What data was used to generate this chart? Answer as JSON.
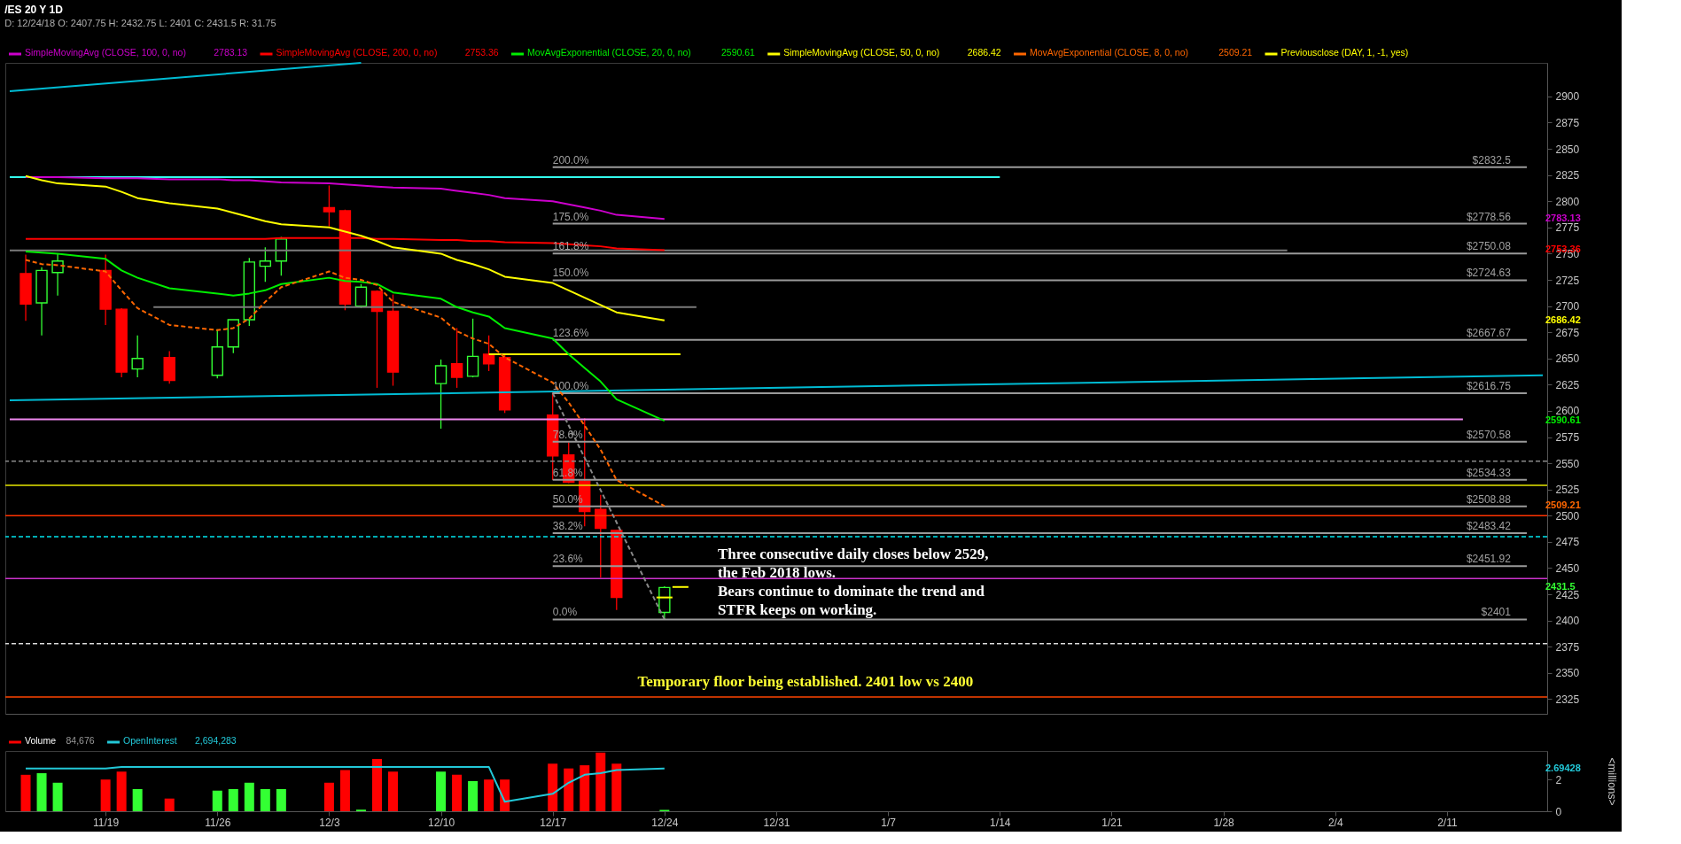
{
  "chart_data": [
    {
      "type": "candlestick",
      "title": "/ES 20 Y 1D",
      "subtitle": "D: 12/24/18   O: 2407.75   H: 2432.75   L: 2401   C: 2431.5   R: 31.75",
      "x": [
        "2018-11-14",
        "2018-11-15",
        "2018-11-16",
        "2018-11-19",
        "2018-11-20",
        "2018-11-21",
        "2018-11-23",
        "2018-11-26",
        "2018-11-27",
        "2018-11-28",
        "2018-11-29",
        "2018-11-30",
        "2018-12-03",
        "2018-12-04",
        "2018-12-05",
        "2018-12-06",
        "2018-12-07",
        "2018-12-10",
        "2018-12-11",
        "2018-12-12",
        "2018-12-13",
        "2018-12-14",
        "2018-12-17",
        "2018-12-18",
        "2018-12-19",
        "2018-12-20",
        "2018-12-21",
        "2018-12-24"
      ],
      "ohlc": [
        [
          2731,
          2749,
          2686,
          2702
        ],
        [
          2703,
          2737,
          2672,
          2734
        ],
        [
          2732,
          2750,
          2710,
          2743
        ],
        [
          2734,
          2749,
          2682,
          2697
        ],
        [
          2697,
          2698,
          2632,
          2637
        ],
        [
          2640,
          2672,
          2632,
          2650
        ],
        [
          2651,
          2657,
          2626,
          2629
        ],
        [
          2634,
          2678,
          2631,
          2661
        ],
        [
          2661,
          2687,
          2655,
          2687
        ],
        [
          2687,
          2746,
          2681,
          2742
        ],
        [
          2738,
          2756,
          2723,
          2743
        ],
        [
          2743,
          2766,
          2729,
          2764
        ],
        [
          2794,
          2815,
          2776,
          2790
        ],
        [
          2791,
          2792,
          2696,
          2702
        ],
        [
          2700,
          2721,
          2698,
          2718
        ],
        [
          2714,
          2715,
          2622,
          2695
        ],
        [
          2695,
          2711,
          2624,
          2637
        ],
        [
          2626,
          2649,
          2583,
          2643
        ],
        [
          2645,
          2679,
          2622,
          2632
        ],
        [
          2633,
          2688,
          2632,
          2652
        ],
        [
          2654,
          2672,
          2638,
          2645
        ],
        [
          2651,
          2654,
          2598,
          2601
        ],
        [
          2596,
          2618,
          2534,
          2557
        ],
        [
          2558,
          2570,
          2531,
          2532
        ],
        [
          2533,
          2593,
          2490,
          2504
        ],
        [
          2506,
          2520,
          2441,
          2488
        ],
        [
          2486,
          2486,
          2410,
          2422
        ],
        [
          2407.75,
          2432.75,
          2401,
          2431.5
        ]
      ],
      "colors": [
        "#ff0000",
        "#33ff33",
        "#33ff33",
        "#ff0000",
        "#ff0000",
        "#33ff33",
        "#ff0000",
        "#33ff33",
        "#33ff33",
        "#33ff33",
        "#33ff33",
        "#33ff33",
        "#ff0000",
        "#ff0000",
        "#33ff33",
        "#ff0000",
        "#ff0000",
        "#33ff33",
        "#ff0000",
        "#33ff33",
        "#ff0000",
        "#ff0000",
        "#ff0000",
        "#ff0000",
        "#ff0000",
        "#ff0000",
        "#ff0000",
        "#33ff33"
      ],
      "series": [
        {
          "name": "SimpleMovingAvg (CLOSE, 100, 0, no)",
          "type": "line",
          "color": "#cc00cc",
          "values": [
            2823,
            2823,
            2823,
            2822,
            2822,
            2822,
            2821,
            2821,
            2820,
            2820,
            2819,
            2818,
            2817,
            2816,
            2815,
            2814,
            2813,
            2812,
            2810,
            2808,
            2806,
            2803,
            2800,
            2797,
            2794,
            2791,
            2787,
            2783.13
          ]
        },
        {
          "name": "SimpleMovingAvg (CLOSE, 200, 0, no)",
          "type": "line",
          "color": "#ff0000",
          "values": [
            2764,
            2764,
            2764,
            2764,
            2764,
            2764,
            2764,
            2764,
            2764,
            2764,
            2764,
            2765,
            2765,
            2765,
            2765,
            2764,
            2764,
            2763,
            2763,
            2762,
            2762,
            2761,
            2760,
            2759,
            2758,
            2757,
            2755,
            2753.36
          ]
        },
        {
          "name": "MovAvgExponential (CLOSE, 20, 0, no)",
          "type": "line",
          "color": "#00ee00",
          "values": [
            2752,
            2751,
            2750,
            2745,
            2734,
            2727,
            2717,
            2712,
            2710,
            2712,
            2715,
            2721,
            2727,
            2724,
            2723,
            2721,
            2713,
            2707,
            2699,
            2694,
            2690,
            2679,
            2669,
            2654,
            2641,
            2628,
            2611,
            2590.61
          ]
        },
        {
          "name": "SimpleMovingAvg (CLOSE, 50, 0, no)",
          "type": "line",
          "color": "#ffff00",
          "values": [
            2824,
            2820,
            2817,
            2814,
            2809,
            2803,
            2798,
            2793,
            2789,
            2785,
            2781,
            2778,
            2775,
            2771,
            2767,
            2762,
            2756,
            2750,
            2744,
            2740,
            2735,
            2728,
            2722,
            2715,
            2708,
            2701,
            2694,
            2686.42
          ]
        },
        {
          "name": "MovAvgExponential (CLOSE, 8, 0, no)",
          "type": "line",
          "color": "#ff6600",
          "line_style": "dashed",
          "values": [
            2744,
            2740,
            2739,
            2733,
            2715,
            2698,
            2682,
            2677,
            2679,
            2688,
            2704,
            2718,
            2733,
            2727,
            2725,
            2720,
            2704,
            2689,
            2676,
            2669,
            2664,
            2651,
            2627,
            2608,
            2586,
            2563,
            2534,
            2509.21
          ]
        },
        {
          "name": "Previousclose (DAY, 1, -1, yes)",
          "type": "line",
          "color": "#ffff00",
          "x": [
            "2018-12-23T12:00",
            "2018-12-24T12:00"
          ],
          "values": [
            2422,
            2422
          ]
        },
        {
          "type": "line",
          "color": "#ffff00",
          "x": [
            "2018-12-24T12:00",
            "2018-12-25T12:00"
          ],
          "values": [
            2432,
            2432
          ]
        },
        {
          "type": "line",
          "color": "#33ffee",
          "x": [
            "2018-11-13",
            "2019-01-14"
          ],
          "values": [
            2823,
            2823
          ]
        },
        {
          "type": "line",
          "color": "#7a7a7a",
          "x": [
            "2018-11-13",
            "2019-02-01"
          ],
          "values": [
            2753,
            2753
          ]
        },
        {
          "type": "line",
          "color": "#7a7a7a",
          "x": [
            "2018-11-22",
            "2018-12-26"
          ],
          "values": [
            2699,
            2699
          ]
        },
        {
          "type": "line",
          "color": "#ffff00",
          "x": [
            "2018-12-13",
            "2018-12-25"
          ],
          "values": [
            2654,
            2654
          ]
        },
        {
          "type": "line",
          "color": "#ee88ee",
          "x": [
            "2018-11-13",
            "2019-02-12"
          ],
          "values": [
            2592,
            2592
          ]
        },
        {
          "type": "line",
          "color": "#00bcd4",
          "x": [
            "2018-11-13",
            "2019-02-17"
          ],
          "values": [
            2610,
            2634
          ]
        },
        {
          "type": "line",
          "color": "#00bcd4",
          "x": [
            "2018-11-13",
            "2018-12-05"
          ],
          "values": [
            2905,
            2932
          ]
        },
        {
          "type": "line",
          "color": "#888888",
          "line_style": "dashed",
          "x": [
            "2018-12-17",
            "2018-12-24"
          ],
          "values": [
            2617,
            2401
          ]
        },
        {
          "type": "line",
          "color": "#9a9a9a",
          "x": [
            "2018-12-17",
            "2019-02-16"
          ],
          "values": [
            2832.5,
            2832.5
          ]
        },
        {
          "type": "line",
          "color": "#9a9a9a",
          "x": [
            "2018-12-17",
            "2019-02-16"
          ],
          "values": [
            2778.56,
            2778.56
          ]
        },
        {
          "type": "line",
          "color": "#9a9a9a",
          "x": [
            "2018-12-17",
            "2019-02-16"
          ],
          "values": [
            2750.08,
            2750.08
          ]
        },
        {
          "type": "line",
          "color": "#9a9a9a",
          "x": [
            "2018-12-17",
            "2019-02-16"
          ],
          "values": [
            2724.63,
            2724.63
          ]
        },
        {
          "type": "line",
          "color": "#9a9a9a",
          "x": [
            "2018-12-17",
            "2019-02-16"
          ],
          "values": [
            2667.67,
            2667.67
          ]
        },
        {
          "type": "line",
          "color": "#9a9a9a",
          "x": [
            "2018-12-17",
            "2019-02-16"
          ],
          "values": [
            2616.75,
            2616.75
          ]
        },
        {
          "type": "line",
          "color": "#9a9a9a",
          "x": [
            "2018-12-17",
            "2019-02-16"
          ],
          "values": [
            2570.58,
            2570.58
          ]
        },
        {
          "type": "line",
          "color": "#9a9a9a",
          "x": [
            "2018-12-17",
            "2019-02-16"
          ],
          "values": [
            2534.33,
            2534.33
          ]
        },
        {
          "type": "line",
          "color": "#9a9a9a",
          "x": [
            "2018-12-17",
            "2019-02-16"
          ],
          "values": [
            2508.88,
            2508.88
          ]
        },
        {
          "type": "line",
          "color": "#9a9a9a",
          "x": [
            "2018-12-17",
            "2019-02-16"
          ],
          "values": [
            2483.42,
            2483.42
          ]
        },
        {
          "type": "line",
          "color": "#9a9a9a",
          "x": [
            "2018-12-17",
            "2019-02-16"
          ],
          "values": [
            2451.92,
            2451.92
          ]
        },
        {
          "type": "line",
          "color": "#9a9a9a",
          "x": [
            "2018-12-17",
            "2019-02-16"
          ],
          "values": [
            2401,
            2401
          ]
        }
      ],
      "ref_lines": [
        {
          "axis": "y",
          "value": 2552,
          "color": "#8a8a8a",
          "line_style": "dashed"
        },
        {
          "axis": "y",
          "value": 2529,
          "color": "#e6e600"
        },
        {
          "axis": "y",
          "value": 2500,
          "color": "#ff3300"
        },
        {
          "axis": "y",
          "value": 2480,
          "color": "#00e5ee",
          "line_style": "dashed"
        },
        {
          "axis": "y",
          "value": 2440,
          "color": "#cc33cc"
        },
        {
          "axis": "y",
          "value": 2378,
          "color": "#dddddd",
          "line_style": "dashed"
        },
        {
          "axis": "y",
          "value": 2327,
          "color": "#ff4400"
        }
      ],
      "annotations": [
        "Three consecutive daily closes below 2529,\nthe Feb 2018 lows.\nBears continue to dominate the trend and\nSTFR keeps on working.",
        "Temporary floor being established. 2401 low vs 2400",
        "2431.5",
        "2783.13",
        "2753.36",
        "2590.61",
        "2686.42",
        "2509.21",
        {
          "text": "200.0%",
          "x": "2018-12-17",
          "y": 2832.5
        },
        {
          "text": "175.0%",
          "x": "2018-12-17",
          "y": 2778.56
        },
        {
          "text": "161.8%",
          "x": "2018-12-17",
          "y": 2750.08
        },
        {
          "text": "150.0%",
          "x": "2018-12-17",
          "y": 2724.63
        },
        {
          "text": "123.6%",
          "x": "2018-12-17",
          "y": 2667.67
        },
        {
          "text": "100.0%",
          "x": "2018-12-17",
          "y": 2616.75
        },
        {
          "text": "78.6%",
          "x": "2018-12-17",
          "y": 2570.58
        },
        {
          "text": "61.8%",
          "x": "2018-12-17",
          "y": 2534.33
        },
        {
          "text": "50.0%",
          "x": "2018-12-17",
          "y": 2508.88
        },
        {
          "text": "38.2%",
          "x": "2018-12-17",
          "y": 2483.42
        },
        {
          "text": "23.6%",
          "x": "2018-12-17",
          "y": 2451.92
        },
        {
          "text": "0.0%",
          "x": "2018-12-17",
          "y": 2401
        },
        {
          "text": "$2832.5",
          "x": "2019-02-15",
          "y": 2832.5
        },
        {
          "text": "$2778.56",
          "x": "2019-02-15",
          "y": 2778.56
        },
        {
          "text": "$2750.08",
          "x": "2019-02-15",
          "y": 2750.08
        },
        {
          "text": "$2724.63",
          "x": "2019-02-15",
          "y": 2724.63
        },
        {
          "text": "$2667.67",
          "x": "2019-02-15",
          "y": 2667.67
        },
        {
          "text": "$2616.75",
          "x": "2019-02-15",
          "y": 2616.75
        },
        {
          "text": "$2570.58",
          "x": "2019-02-15",
          "y": 2570.58
        },
        {
          "text": "$2534.33",
          "x": "2019-02-15",
          "y": 2534.33
        },
        {
          "text": "$2508.88",
          "x": "2019-02-15",
          "y": 2508.88
        },
        {
          "text": "$2483.42",
          "x": "2019-02-15",
          "y": 2483.42
        },
        {
          "text": "$2451.92",
          "x": "2019-02-15",
          "y": 2451.92
        },
        {
          "text": "$2401",
          "x": "2019-02-15",
          "y": 2401
        }
      ],
      "xlim": [
        "2018-11-13",
        "2019-02-17"
      ],
      "ylim": [
        2311,
        2932
      ],
      "yticks": [
        2325,
        2350,
        2375,
        2400,
        2425,
        2450,
        2475,
        2500,
        2525,
        2550,
        2575,
        2600,
        2625,
        2650,
        2675,
        2700,
        2725,
        2750,
        2775,
        2800,
        2825,
        2850,
        2875,
        2900
      ],
      "tick_labels": "y",
      "legend": "top"
    },
    {
      "type": "bar",
      "ylabel": "<millions>",
      "x": [
        "2018-11-14",
        "2018-11-15",
        "2018-11-16",
        "2018-11-19",
        "2018-11-20",
        "2018-11-21",
        "2018-11-23",
        "2018-11-26",
        "2018-11-27",
        "2018-11-28",
        "2018-11-29",
        "2018-11-30",
        "2018-12-03",
        "2018-12-04",
        "2018-12-05",
        "2018-12-06",
        "2018-12-07",
        "2018-12-10",
        "2018-12-11",
        "2018-12-12",
        "2018-12-13",
        "2018-12-14",
        "2018-12-17",
        "2018-12-18",
        "2018-12-19",
        "2018-12-20",
        "2018-12-21",
        "2018-12-24"
      ],
      "series": [
        {
          "name": "Volume",
          "type": "bar",
          "colors": [
            "#ff0000",
            "#33ff33",
            "#33ff33",
            "#ff0000",
            "#ff0000",
            "#33ff33",
            "#ff0000",
            "#33ff33",
            "#33ff33",
            "#33ff33",
            "#33ff33",
            "#33ff33",
            "#ff0000",
            "#ff0000",
            "#33ff33",
            "#ff0000",
            "#ff0000",
            "#33ff33",
            "#ff0000",
            "#33ff33",
            "#ff0000",
            "#ff0000",
            "#ff0000",
            "#ff0000",
            "#ff0000",
            "#ff0000",
            "#ff0000",
            "#33ff33"
          ],
          "values": [
            2.3,
            2.4,
            1.8,
            2.0,
            2.5,
            1.4,
            0.8,
            1.3,
            1.4,
            1.8,
            1.4,
            1.4,
            1.8,
            2.6,
            0.1,
            3.3,
            2.5,
            2.5,
            2.3,
            1.9,
            2.0,
            2.0,
            3.0,
            2.7,
            2.9,
            3.7,
            3.0,
            0.085
          ]
        },
        {
          "name": "OpenInterest",
          "type": "line",
          "color": "#22c8d8",
          "values": [
            2.7,
            2.7,
            2.7,
            2.7,
            2.8,
            2.8,
            2.8,
            2.8,
            2.8,
            2.8,
            2.8,
            2.8,
            2.8,
            2.8,
            2.8,
            2.8,
            2.8,
            2.8,
            2.8,
            2.8,
            2.8,
            0.6,
            1.1,
            1.8,
            2.3,
            2.4,
            2.6,
            2.69428
          ]
        }
      ],
      "annotations": [
        "84,676",
        "2,694,283",
        "2.69428"
      ],
      "xlim": [
        "2018-11-13",
        "2019-02-17"
      ],
      "ylim": [
        0,
        3.8
      ],
      "yticks": [
        0,
        2
      ],
      "xticks": [
        {
          "value": "2018-11-19",
          "label": "11/19"
        },
        {
          "value": "2018-11-26",
          "label": "11/26"
        },
        {
          "value": "2018-12-03",
          "label": "12/3"
        },
        {
          "value": "2018-12-10",
          "label": "12/10"
        },
        {
          "value": "2018-12-17",
          "label": "12/17"
        },
        {
          "value": "2018-12-24",
          "label": "12/24"
        },
        {
          "value": "2018-12-31",
          "label": "12/31"
        },
        {
          "value": "2019-01-07",
          "label": "1/7"
        },
        {
          "value": "2019-01-14",
          "label": "1/14"
        },
        {
          "value": "2019-01-21",
          "label": "1/21"
        },
        {
          "value": "2019-01-28",
          "label": "1/28"
        },
        {
          "value": "2019-02-04",
          "label": "2/4"
        },
        {
          "value": "2019-02-11",
          "label": "2/11"
        }
      ],
      "legend": "top"
    }
  ]
}
